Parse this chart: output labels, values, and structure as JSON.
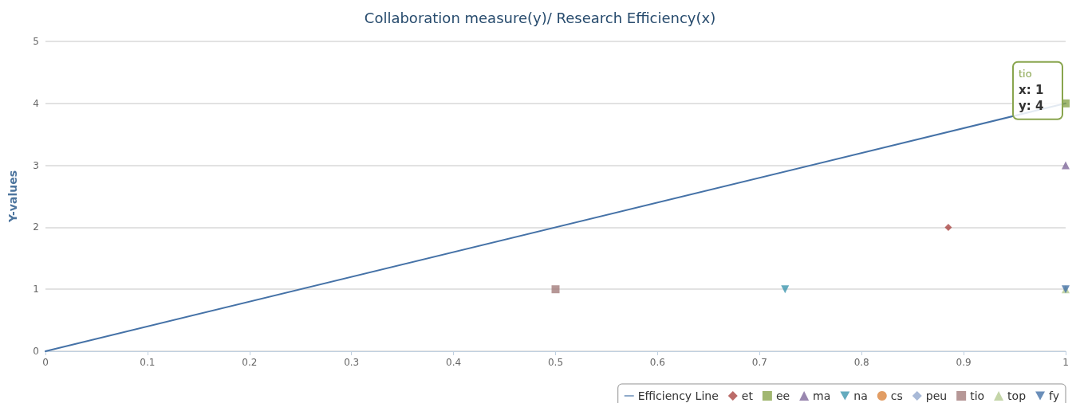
{
  "chart_data": {
    "type": "scatter",
    "title": "Collaboration measure(y)/ Research Efficiency(x)",
    "ylabel": "Y-values",
    "xlim": [
      0,
      1
    ],
    "xticks": [
      0,
      0.1,
      0.2,
      0.3,
      0.4,
      0.5,
      0.6,
      0.7,
      0.8,
      0.9,
      1
    ],
    "ylim": [
      0,
      5
    ],
    "yticks": [
      0,
      1,
      2,
      3,
      4,
      5
    ],
    "grid": "y",
    "legend": "bottom right",
    "annotations": [
      {
        "text": "tio\nx: 1\ny: 4",
        "x": 1,
        "y": 4
      }
    ],
    "series": [
      {
        "name": "Efficiency Line",
        "type": "line",
        "color": "#4572a7",
        "marker": "none",
        "line_style": "solid",
        "x": [
          0,
          1
        ],
        "values": [
          0,
          4
        ]
      },
      {
        "name": "et",
        "color": "#aa4643",
        "marker": "diamond",
        "x": [
          0.885
        ],
        "values": [
          2
        ]
      },
      {
        "name": "ee",
        "color": "#89a54e",
        "marker": "square",
        "x": [
          1
        ],
        "values": [
          4
        ]
      },
      {
        "name": "ma",
        "color": "#80699b",
        "marker": "triangle",
        "x": [
          1
        ],
        "values": [
          3
        ]
      },
      {
        "name": "na",
        "color": "#3d96ae",
        "marker": "triangle-down",
        "x": [
          0.725
        ],
        "values": [
          1
        ]
      },
      {
        "name": "cs",
        "color": "#db843d",
        "marker": "circle"
      },
      {
        "name": "peu",
        "color": "#92a8cd",
        "marker": "diamond"
      },
      {
        "name": "tio",
        "color": "#a47d7c",
        "marker": "square",
        "x": [
          0.5
        ],
        "values": [
          1
        ]
      },
      {
        "name": "top",
        "color": "#b5ca92",
        "marker": "triangle",
        "x": [
          1
        ],
        "values": [
          1
        ]
      },
      {
        "name": "fy",
        "color": "#4572a7",
        "marker": "triangle-down",
        "x": [
          1
        ],
        "values": [
          1
        ]
      }
    ]
  }
}
